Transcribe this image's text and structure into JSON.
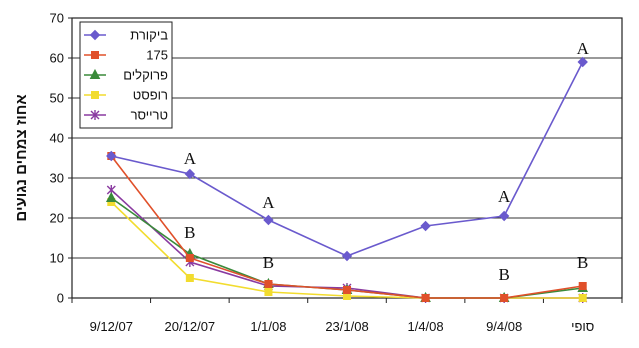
{
  "chart_data": {
    "type": "line",
    "categories": [
      "9/12/07",
      "20/12/07",
      "1/1/08",
      "23/1/08",
      "1/4/08",
      "9/4/08",
      "סופי"
    ],
    "ylabel": "אחוז צמחים נגועים",
    "ylim": [
      0,
      70
    ],
    "yticks": [
      0,
      10,
      20,
      30,
      40,
      50,
      60,
      70
    ],
    "grid": true,
    "legend": "top-left",
    "series": [
      {
        "name": "ביקורת",
        "color": "#6a5acd",
        "marker": "diamond",
        "values": [
          35.5,
          31,
          19.5,
          10.5,
          18,
          20.5,
          59
        ]
      },
      {
        "name": "175",
        "color": "#e0502a",
        "marker": "square",
        "values": [
          35.5,
          10,
          3.5,
          2,
          0,
          0,
          3
        ]
      },
      {
        "name": "פרוקלים",
        "color": "#3a8a3a",
        "marker": "triangle",
        "values": [
          25,
          11,
          3.5,
          2,
          0,
          0,
          2.5
        ]
      },
      {
        "name": "רופסט",
        "color": "#f2dc2e",
        "marker": "square",
        "values": [
          24,
          5,
          1.5,
          0.5,
          0,
          0,
          0
        ]
      },
      {
        "name": "טרייסר",
        "color": "#8a3aa0",
        "marker": "star",
        "values": [
          27,
          9,
          3,
          2.5,
          0,
          0,
          0
        ]
      }
    ],
    "annotations": [
      {
        "text": "A",
        "cat": 1,
        "y": 35
      },
      {
        "text": "B",
        "cat": 1,
        "y": 16.5
      },
      {
        "text": "A",
        "cat": 2,
        "y": 24
      },
      {
        "text": "B",
        "cat": 2,
        "y": 9
      },
      {
        "text": "A",
        "cat": 5,
        "y": 25.5
      },
      {
        "text": "B",
        "cat": 5,
        "y": 6
      },
      {
        "text": "A",
        "cat": 6,
        "y": 62.5
      },
      {
        "text": "B",
        "cat": 6,
        "y": 9
      }
    ]
  }
}
